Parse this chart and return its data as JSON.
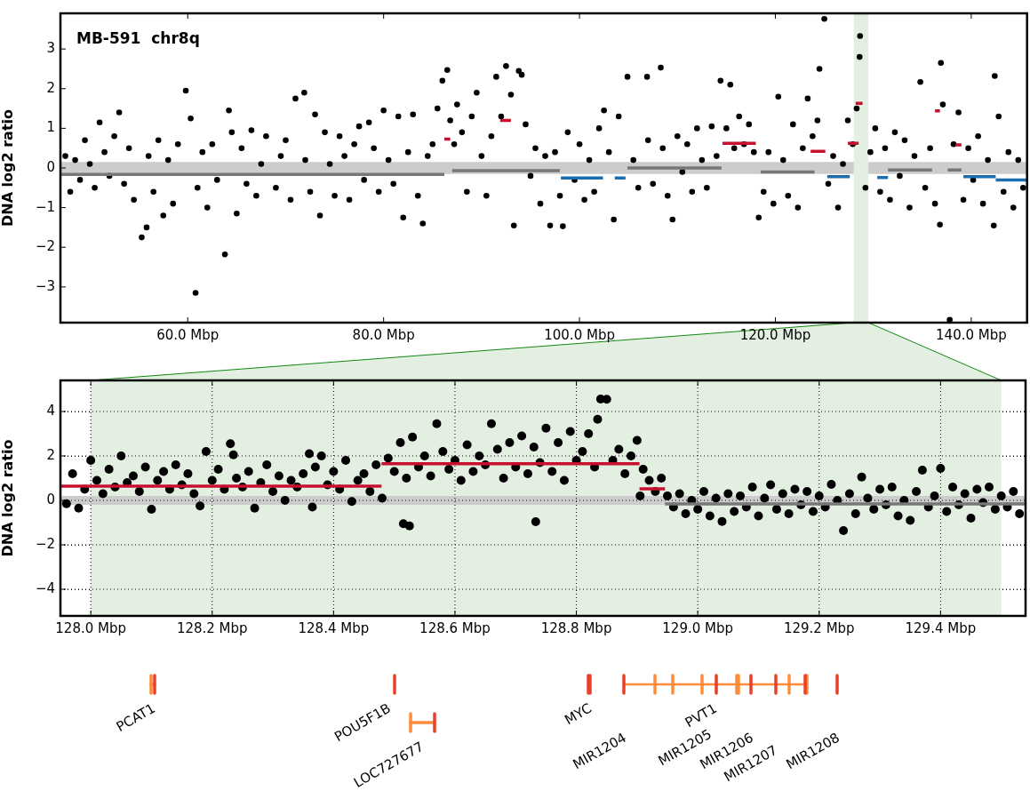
{
  "chart_data": [
    {
      "type": "scatter",
      "title": "MB-591  chr8q",
      "ylabel": "DNA log2 ratio",
      "xlim": [
        47,
        145.7
      ],
      "ylim": [
        -3.9,
        3.9
      ],
      "xticks": [
        {
          "value": 60,
          "label": "60.0 Mbp"
        },
        {
          "value": 80,
          "label": "80.0 Mbp"
        },
        {
          "value": 100,
          "label": "100.0 Mbp"
        },
        {
          "value": 120,
          "label": "120.0 Mbp"
        },
        {
          "value": 140,
          "label": "140.0 Mbp"
        }
      ],
      "yticks": [
        {
          "value": -3,
          "label": "−3"
        },
        {
          "value": -2,
          "label": "−2"
        },
        {
          "value": -1,
          "label": "−1"
        },
        0,
        1,
        2,
        3
      ],
      "grid": false,
      "legend": false,
      "bands": [
        {
          "axis": "y",
          "from": -0.15,
          "to": 0.15,
          "color": "#cccccc"
        },
        {
          "axis": "x",
          "from": 128,
          "to": 129.5,
          "color": "#e3efe1"
        }
      ],
      "series": [
        {
          "marker": "circle",
          "color": "#000000",
          "x": [
            47.5,
            48,
            48.5,
            49,
            49.5,
            50,
            50.5,
            51,
            51.5,
            52,
            52.5,
            53,
            53.5,
            54,
            54.5,
            55.3,
            55.8,
            56,
            56.5,
            57,
            57.5,
            58,
            58.5,
            59,
            59.8,
            60.3,
            60.8,
            61,
            61.5,
            62,
            62.5,
            63,
            63.8,
            64.2,
            64.5,
            65,
            65.5,
            66,
            66.5,
            67,
            67.5,
            68,
            69,
            69.5,
            70,
            70.5,
            71,
            71.9,
            72,
            72.5,
            73,
            73.5,
            74,
            74.5,
            75,
            75.5,
            76,
            76.5,
            77,
            77.5,
            78,
            78.5,
            79,
            79.5,
            80,
            80.5,
            81,
            81.5,
            82,
            82.5,
            83,
            83.5,
            84,
            84.5,
            85,
            85.5,
            86,
            86.5,
            86.8,
            87.2,
            87.5,
            88,
            88.5,
            89,
            89.5,
            90,
            90.5,
            91,
            91.5,
            92,
            92.5,
            93,
            93.3,
            93.8,
            94.1,
            94.5,
            95,
            95.5,
            96,
            96.5,
            97,
            97.5,
            98,
            98.3,
            98.8,
            99.5,
            100,
            100.5,
            101,
            101.5,
            102,
            102.5,
            103,
            103.5,
            104,
            104.9,
            105.5,
            106,
            106.9,
            107,
            107.5,
            108.3,
            108.5,
            109,
            109.5,
            110,
            110.5,
            111,
            111.5,
            112,
            112.5,
            113,
            113.5,
            114,
            114.4,
            115,
            115.4,
            115.8,
            116.3,
            116.8,
            117.3,
            117.8,
            118.3,
            118.8,
            119.3,
            119.8,
            120.3,
            120.8,
            121.3,
            121.8,
            122.3,
            122.8,
            123.3,
            123.8,
            124.3,
            124.5,
            125,
            125.4,
            125.9,
            126.4,
            126.9,
            127.4,
            127.9,
            128.3,
            128.6,
            128.65,
            129.2,
            129.7,
            130.2,
            130.7,
            131.2,
            131.7,
            132.2,
            132.7,
            133.2,
            133.7,
            134.2,
            134.8,
            135.3,
            135.8,
            136.3,
            136.8,
            136.9,
            137.1,
            137.8,
            138.2,
            138.7,
            139.2,
            139.7,
            140.2,
            140.7,
            141.2,
            141.7,
            142.3,
            142.4,
            142.8,
            143.3,
            143.8,
            144.3,
            144.8,
            145.3
          ],
          "values": [
            0.3,
            -0.6,
            0.2,
            -0.3,
            0.7,
            0.1,
            -0.5,
            1.15,
            0.4,
            -0.2,
            0.8,
            1.4,
            -0.4,
            0.5,
            -0.8,
            -1.75,
            -1.5,
            0.3,
            -0.6,
            0.7,
            -1.2,
            0.2,
            -0.9,
            0.6,
            1.95,
            1.25,
            -3.15,
            -0.5,
            0.4,
            -1.0,
            0.6,
            -0.3,
            -2.18,
            1.45,
            0.9,
            -1.15,
            0.5,
            -0.4,
            0.95,
            -0.7,
            0.1,
            0.8,
            -0.5,
            0.3,
            0.7,
            -0.8,
            1.75,
            1.9,
            0.2,
            -0.6,
            1.35,
            -1.2,
            0.9,
            0.1,
            -0.7,
            0.8,
            0.3,
            -0.8,
            0.6,
            1.05,
            -0.3,
            1.15,
            0.5,
            -0.6,
            1.45,
            0.2,
            -0.4,
            1.3,
            -1.25,
            0.4,
            1.35,
            -0.7,
            -1.4,
            0.3,
            0.6,
            1.5,
            2.2,
            2.47,
            1.2,
            0.6,
            1.6,
            0.9,
            -0.6,
            1.3,
            1.9,
            0.3,
            -0.7,
            0.8,
            2.3,
            1.3,
            2.57,
            1.85,
            -1.45,
            2.45,
            2.35,
            1.1,
            -0.2,
            0.5,
            -0.9,
            0.3,
            -1.45,
            0.4,
            -0.7,
            -1.47,
            0.9,
            -0.3,
            0.6,
            -0.8,
            0.2,
            -0.6,
            1.0,
            1.45,
            0.4,
            -1.3,
            1.3,
            2.3,
            0.2,
            -0.5,
            2.3,
            0.7,
            -0.4,
            2.53,
            0.5,
            -0.7,
            -1.3,
            0.8,
            -0.1,
            0.6,
            -0.6,
            1.0,
            0.2,
            -0.5,
            1.05,
            0.3,
            2.2,
            1.0,
            2.1,
            0.5,
            1.3,
            0.6,
            1.1,
            0.4,
            -1.25,
            -0.6,
            0.4,
            -0.9,
            1.8,
            0.2,
            -0.7,
            1.1,
            -1.0,
            0.5,
            1.75,
            0.8,
            1.2,
            2.5,
            3.76,
            -0.4,
            0.3,
            -1.0,
            0.1,
            1.2,
            0.6,
            1.5,
            2.8,
            3.33,
            -0.5,
            0.4,
            1.0,
            -0.6,
            0.5,
            -0.8,
            0.9,
            -0.2,
            0.7,
            -1.0,
            0.3,
            2.17,
            -0.5,
            0.5,
            -0.9,
            -1.43,
            2.65,
            1.6,
            -3.83,
            0.6,
            1.4,
            -0.8,
            0.5,
            -0.3,
            0.8,
            -0.9,
            0.2,
            -1.45,
            2.32,
            1.3,
            -0.6,
            0.4,
            -1.0,
            0.2,
            -0.5
          ]
        },
        {
          "type": "line",
          "color": "#777777",
          "x": [
            47,
            86.2
          ],
          "values": [
            -0.16,
            -0.16
          ]
        },
        {
          "type": "line",
          "color": "#777777",
          "x": [
            87,
            98
          ],
          "values": [
            -0.07,
            -0.07
          ]
        },
        {
          "type": "line",
          "color": "#777777",
          "x": [
            104.9,
            114.5
          ],
          "values": [
            0,
            0
          ]
        },
        {
          "type": "line",
          "color": "#777777",
          "x": [
            118.5,
            124
          ],
          "values": [
            -0.1,
            -0.1
          ]
        },
        {
          "type": "line",
          "color": "#777777",
          "x": [
            131.5,
            136
          ],
          "values": [
            -0.05,
            -0.05
          ]
        },
        {
          "type": "line",
          "color": "#777777",
          "x": [
            137.6,
            139
          ],
          "values": [
            -0.05,
            -0.05
          ]
        },
        {
          "type": "line",
          "color": "#1a6eb0",
          "x": [
            98.1,
            102.4
          ],
          "values": [
            -0.25,
            -0.25
          ]
        },
        {
          "type": "line",
          "color": "#1a6eb0",
          "x": [
            103.6,
            104.7
          ],
          "values": [
            -0.25,
            -0.25
          ]
        },
        {
          "type": "line",
          "color": "#1a6eb0",
          "x": [
            125.3,
            127.6
          ],
          "values": [
            -0.22,
            -0.22
          ]
        },
        {
          "type": "line",
          "color": "#1a6eb0",
          "x": [
            130.4,
            131.5
          ],
          "values": [
            -0.24,
            -0.24
          ]
        },
        {
          "type": "line",
          "color": "#1a6eb0",
          "x": [
            139.2,
            142.5
          ],
          "values": [
            -0.22,
            -0.22
          ]
        },
        {
          "type": "line",
          "color": "#1a6eb0",
          "x": [
            142.5,
            145.7
          ],
          "values": [
            -0.3,
            -0.3
          ]
        },
        {
          "type": "line",
          "color": "#c8102e",
          "x": [
            86.2,
            86.8
          ],
          "values": [
            0.73,
            0.73
          ]
        },
        {
          "type": "line",
          "color": "#c8102e",
          "x": [
            91.9,
            93.0
          ],
          "values": [
            1.2,
            1.2
          ]
        },
        {
          "type": "line",
          "color": "#c8102e",
          "x": [
            114.6,
            118.0
          ],
          "values": [
            0.62,
            0.62
          ]
        },
        {
          "type": "line",
          "color": "#c8102e",
          "x": [
            123.6,
            125.1
          ],
          "values": [
            0.42,
            0.42
          ]
        },
        {
          "type": "line",
          "color": "#c8102e",
          "x": [
            127.4,
            128.5
          ],
          "values": [
            0.62,
            0.62
          ]
        },
        {
          "type": "line",
          "color": "#c8102e",
          "x": [
            128.2,
            128.9
          ],
          "values": [
            1.63,
            1.63
          ]
        },
        {
          "type": "line",
          "color": "#c8102e",
          "x": [
            136.3,
            136.8
          ],
          "values": [
            1.44,
            1.44
          ]
        },
        {
          "type": "line",
          "color": "#c8102e",
          "x": [
            138.4,
            139.0
          ],
          "values": [
            0.58,
            0.58
          ]
        }
      ]
    },
    {
      "type": "scatter",
      "ylabel": "DNA log2 ratio",
      "xlim": [
        127.95,
        129.54
      ],
      "ylim": [
        -5.2,
        5.4
      ],
      "xticks": [
        {
          "value": 128.0,
          "label": "128.0 Mbp"
        },
        {
          "value": 128.2,
          "label": "128.2 Mbp"
        },
        {
          "value": 128.4,
          "label": "128.4 Mbp"
        },
        {
          "value": 128.6,
          "label": "128.6 Mbp"
        },
        {
          "value": 128.8,
          "label": "128.8 Mbp"
        },
        {
          "value": 129.0,
          "label": "129.0 Mbp"
        },
        {
          "value": 129.2,
          "label": "129.2 Mbp"
        },
        {
          "value": 129.4,
          "label": "129.4 Mbp"
        }
      ],
      "yticks": [
        {
          "value": -4,
          "label": "−4"
        },
        {
          "value": -2,
          "label": "−2"
        },
        0,
        2,
        4
      ],
      "grid": true,
      "legend": false,
      "annotations": [
        "PCAT1",
        "POU5F1B",
        "LOC727677",
        "MYC",
        "MIR1204",
        "PVT1",
        "MIR1205",
        "MIR1206",
        "MIR1207",
        "MIR1208"
      ],
      "bands": [
        {
          "axis": "x",
          "from": 128,
          "to": 129.5,
          "color": "#e3efe1"
        },
        {
          "axis": "y",
          "from": -0.2,
          "to": 0.2,
          "color": "#cccccc"
        }
      ],
      "series": [
        {
          "marker": "circle",
          "color": "#000000",
          "x": [
            127.96,
            127.97,
            127.98,
            127.99,
            128.0,
            128.01,
            128.02,
            128.03,
            128.04,
            128.05,
            128.06,
            128.07,
            128.08,
            128.09,
            128.1,
            128.11,
            128.12,
            128.13,
            128.14,
            128.15,
            128.16,
            128.17,
            128.18,
            128.19,
            128.2,
            128.21,
            128.22,
            128.23,
            128.235,
            128.24,
            128.25,
            128.26,
            128.27,
            128.28,
            128.29,
            128.3,
            128.31,
            128.32,
            128.33,
            128.34,
            128.35,
            128.36,
            128.365,
            128.37,
            128.38,
            128.39,
            128.4,
            128.41,
            128.42,
            128.43,
            128.44,
            128.45,
            128.46,
            128.47,
            128.48,
            128.49,
            128.5,
            128.51,
            128.515,
            128.52,
            128.525,
            128.53,
            128.54,
            128.55,
            128.56,
            128.57,
            128.58,
            128.59,
            128.6,
            128.61,
            128.62,
            128.63,
            128.64,
            128.65,
            128.66,
            128.67,
            128.68,
            128.69,
            128.7,
            128.71,
            128.72,
            128.73,
            128.733,
            128.74,
            128.75,
            128.76,
            128.77,
            128.78,
            128.79,
            128.8,
            128.81,
            128.82,
            128.83,
            128.835,
            128.84,
            128.85,
            128.86,
            128.87,
            128.88,
            128.89,
            128.9,
            128.905,
            128.91,
            128.92,
            128.93,
            128.94,
            128.95,
            128.96,
            128.97,
            128.98,
            128.99,
            129.0,
            129.01,
            129.02,
            129.03,
            129.04,
            129.05,
            129.06,
            129.07,
            129.08,
            129.09,
            129.1,
            129.11,
            129.12,
            129.13,
            129.14,
            129.15,
            129.16,
            129.17,
            129.18,
            129.19,
            129.2,
            129.21,
            129.22,
            129.23,
            129.24,
            129.25,
            129.26,
            129.27,
            129.28,
            129.29,
            129.3,
            129.31,
            129.32,
            129.33,
            129.34,
            129.35,
            129.36,
            129.37,
            129.38,
            129.39,
            129.4,
            129.41,
            129.42,
            129.43,
            129.44,
            129.45,
            129.46,
            129.47,
            129.48,
            129.49,
            129.5,
            129.51,
            129.52,
            129.53
          ],
          "values": [
            -0.15,
            1.2,
            -0.35,
            0.5,
            1.8,
            0.9,
            0.3,
            1.4,
            0.6,
            2.0,
            0.8,
            1.1,
            0.4,
            1.5,
            -0.4,
            0.9,
            1.3,
            0.5,
            1.6,
            0.7,
            1.2,
            0.3,
            -0.25,
            2.2,
            0.9,
            1.4,
            0.5,
            2.55,
            2.05,
            1.0,
            0.6,
            1.3,
            -0.35,
            0.8,
            1.6,
            0.4,
            1.1,
            0.0,
            0.9,
            0.6,
            1.2,
            2.1,
            -0.3,
            1.5,
            2.0,
            0.7,
            1.3,
            0.5,
            1.8,
            -0.05,
            0.9,
            1.2,
            0.4,
            1.6,
            0.1,
            1.9,
            1.3,
            2.6,
            -1.05,
            1.0,
            -1.15,
            2.85,
            1.5,
            2.0,
            1.1,
            3.45,
            2.2,
            1.4,
            1.8,
            0.9,
            2.5,
            1.3,
            2.0,
            1.6,
            3.45,
            2.3,
            1.0,
            2.6,
            1.5,
            2.9,
            1.2,
            2.4,
            -0.96,
            1.7,
            3.25,
            1.3,
            2.6,
            0.9,
            3.1,
            1.8,
            2.2,
            3.0,
            1.5,
            3.65,
            4.56,
            4.55,
            1.8,
            2.3,
            1.2,
            2.0,
            2.7,
            0.2,
            1.4,
            0.9,
            0.4,
            1.0,
            0.2,
            -0.3,
            0.3,
            -0.6,
            0.0,
            -0.4,
            0.4,
            -0.7,
            0.1,
            -0.95,
            0.3,
            -0.5,
            0.2,
            -0.3,
            0.6,
            -0.7,
            0.1,
            0.7,
            -0.4,
            0.3,
            -0.6,
            0.5,
            -0.2,
            0.4,
            -0.5,
            0.2,
            -0.3,
            0.72,
            0.0,
            -1.36,
            0.3,
            -0.6,
            1.05,
            0.1,
            -0.4,
            0.5,
            -0.2,
            0.6,
            -0.7,
            0.0,
            -0.9,
            0.4,
            1.36,
            -0.3,
            0.2,
            1.44,
            -0.5,
            0.6,
            -0.2,
            0.3,
            -0.8,
            0.5,
            -0.1,
            0.6,
            -0.4,
            0.2,
            -0.3,
            0.4,
            -0.6
          ]
        },
        {
          "type": "line",
          "color": "#c8102e",
          "x": [
            127.95,
            128.479
          ],
          "values": [
            0.64,
            0.64
          ]
        },
        {
          "type": "line",
          "color": "#c8102e",
          "x": [
            128.479,
            128.904
          ],
          "values": [
            1.65,
            1.65
          ]
        },
        {
          "type": "line",
          "color": "#c8102e",
          "x": [
            128.904,
            128.946
          ],
          "values": [
            0.52,
            0.52
          ]
        },
        {
          "type": "line",
          "color": "#777777",
          "x": [
            128.946,
            129.54
          ],
          "values": [
            -0.16,
            -0.16
          ]
        }
      ]
    }
  ]
}
